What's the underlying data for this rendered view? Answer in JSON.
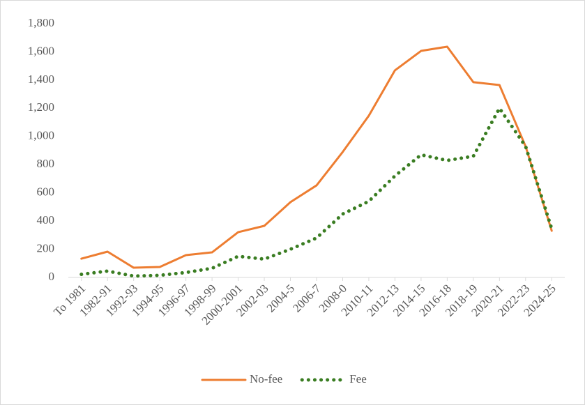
{
  "chart_data": {
    "type": "line",
    "categories": [
      "To 1981",
      "1982-91",
      "1992-93",
      "1994-95",
      "1996-97",
      "1998-99",
      "2000-2001",
      "2002-03",
      "2004-5",
      "2006-7",
      "2008-0",
      "2010-11",
      "2012-13",
      "2014-15",
      "2016-18",
      "2018-19",
      "2020-21",
      "2022-23",
      "2024-25"
    ],
    "series": [
      {
        "name": "No-fee",
        "color": "#ed7d31",
        "dash": "solid",
        "values": [
          133,
          183,
          69,
          74,
          158,
          178,
          321,
          366,
          534,
          653,
          890,
          1147,
          1469,
          1607,
          1637,
          1385,
          1365,
          930,
          331
        ]
      },
      {
        "name": "Fee",
        "color": "#3a7d22",
        "dash": "dotted",
        "values": [
          22,
          45,
          10,
          15,
          35,
          65,
          150,
          130,
          200,
          280,
          450,
          540,
          720,
          870,
          830,
          860,
          1200,
          930,
          345
        ]
      }
    ],
    "ylim": [
      0,
      1800
    ],
    "yticks": [
      0,
      200,
      400,
      600,
      800,
      {
        "value": 1000,
        "label": "1,000"
      },
      {
        "value": 1200,
        "label": "1,200"
      },
      {
        "value": 1400,
        "label": "1,400"
      },
      {
        "value": 1600,
        "label": "1,600"
      },
      {
        "value": 1800,
        "label": "1,800"
      }
    ],
    "grid": false,
    "legend": "bottom"
  }
}
